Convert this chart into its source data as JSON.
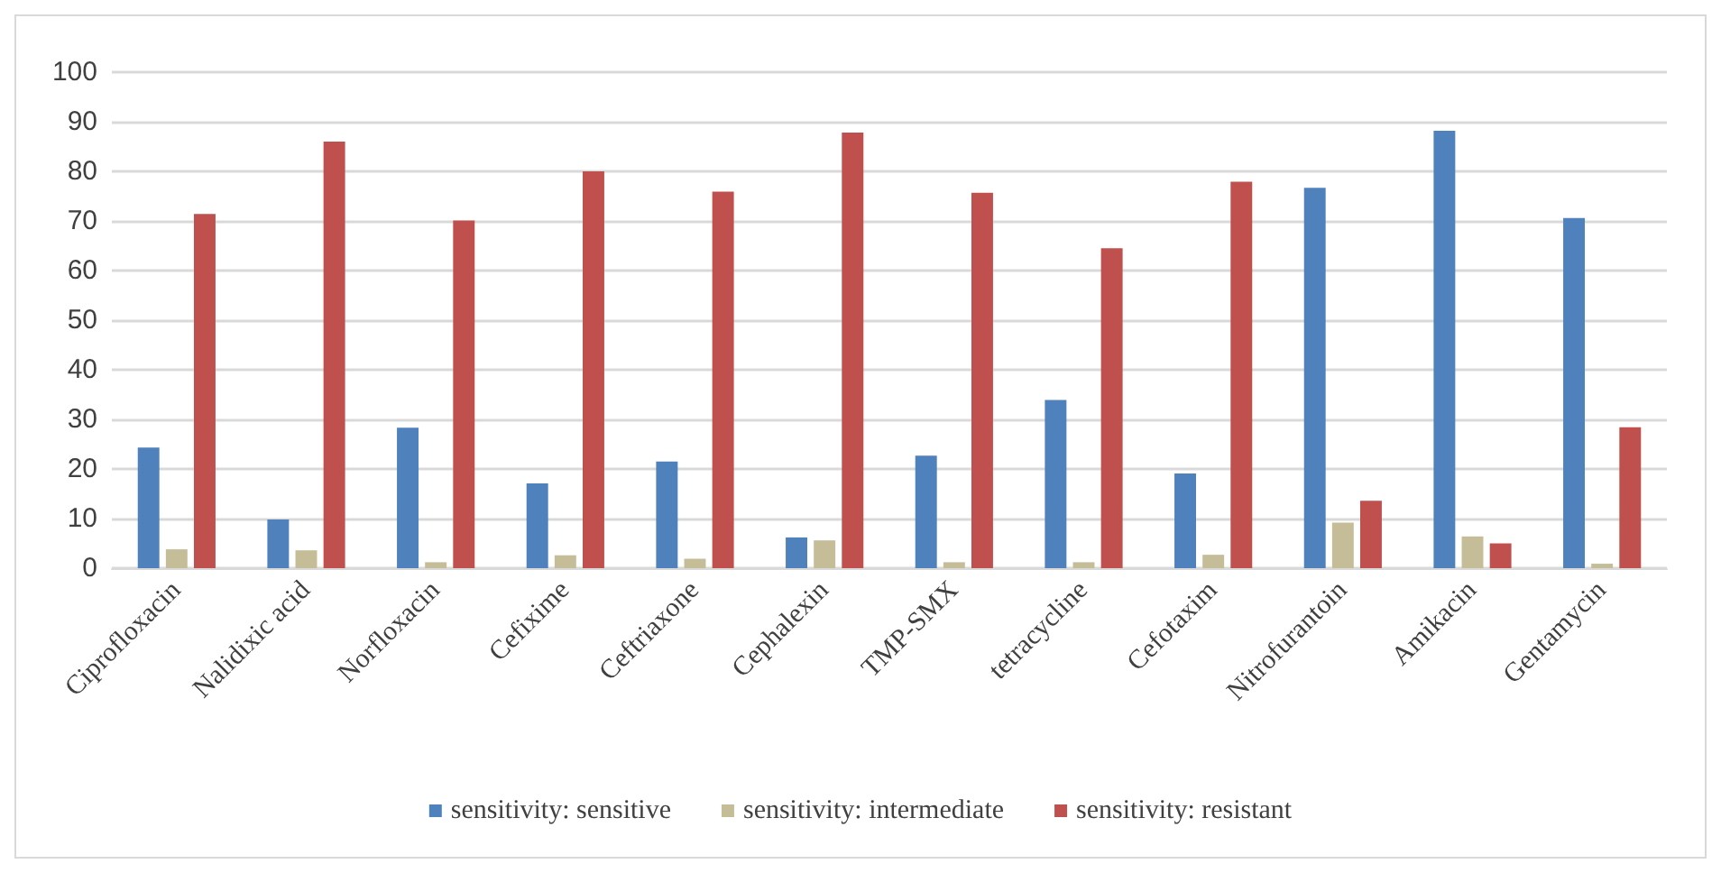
{
  "chart_data": {
    "type": "bar",
    "categories": [
      "Ciprofloxacin",
      "Nalidixic acid",
      "Norfloxacin",
      "Cefixime",
      "Ceftriaxone",
      "Cephalexin",
      "TMP-SMX",
      "tetracycline",
      "Cefotaxim",
      "Nitrofurantoin",
      "Amikacin",
      "Gentamycin"
    ],
    "series": [
      {
        "name": "sensitivity: sensitive",
        "color": "#4f81bd",
        "values": [
          24.3,
          9.8,
          28.3,
          17.1,
          21.5,
          6.2,
          22.7,
          33.9,
          19.1,
          76.7,
          88.2,
          70.6
        ]
      },
      {
        "name": "sensitivity: intermediate",
        "color": "#c4bd97",
        "values": [
          3.8,
          3.6,
          1.2,
          2.6,
          1.9,
          5.6,
          1.2,
          1.2,
          2.7,
          9.2,
          6.4,
          0.9
        ]
      },
      {
        "name": "sensitivity: resistant",
        "color": "#c0504d",
        "values": [
          71.4,
          86.0,
          70.1,
          80.0,
          75.9,
          87.8,
          75.7,
          64.5,
          77.9,
          13.6,
          5.0,
          28.4
        ]
      }
    ],
    "ylim": [
      0,
      100
    ],
    "yticks": [
      0,
      10,
      20,
      30,
      40,
      50,
      60,
      70,
      80,
      90,
      100
    ],
    "grid": "y",
    "legend": "bottom"
  }
}
